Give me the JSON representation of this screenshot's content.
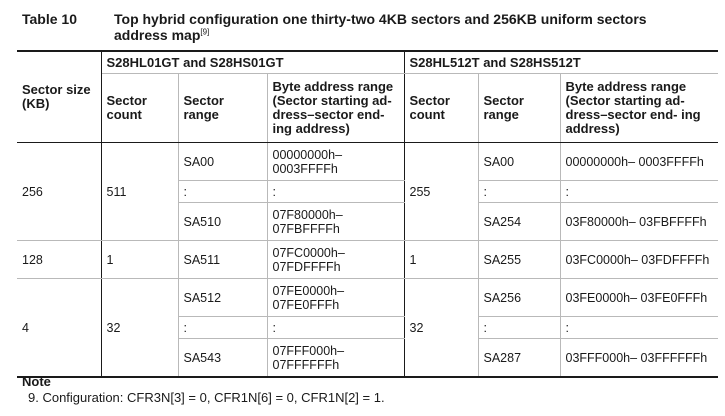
{
  "caption": {
    "label": "Table 10",
    "title_line1": "Top hybrid configuration one thirty-two 4KB sectors and 256KB uniform sectors",
    "title_line2": "address map",
    "ref": "[9]"
  },
  "headers": {
    "sector_size": "Sector size (KB)",
    "group1": "S28HL01GT and S28HS01GT",
    "group2": "S28HL512T and S28HS512T",
    "g1_count": "Sector count",
    "g1_range": "Sector range",
    "g1_addr": "Byte address range (Sector starting ad- dress–sector end- ing address)",
    "g2_count": "Sector count",
    "g2_range": "Sector range",
    "g2_addr": "Byte address range (Sector starting ad- dress–sector end- ing address)"
  },
  "blocks": [
    {
      "size": "256",
      "g1_count": "511",
      "g2_count": "255",
      "rows": [
        {
          "g1_range": "SA00",
          "g1_addr": "00000000h– 0003FFFFh",
          "g2_range": "SA00",
          "g2_addr": "00000000h– 0003FFFFh"
        },
        {
          "g1_range": ":",
          "g1_addr": ":",
          "g2_range": ":",
          "g2_addr": ":"
        },
        {
          "g1_range": "SA510",
          "g1_addr": "07F80000h– 07FBFFFFh",
          "g2_range": "SA254",
          "g2_addr": "03F80000h– 03FBFFFFh"
        }
      ]
    },
    {
      "size": "128",
      "g1_count": "1",
      "g2_count": "1",
      "rows": [
        {
          "g1_range": "SA511",
          "g1_addr": "07FC0000h– 07FDFFFFh",
          "g2_range": "SA255",
          "g2_addr": "03FC0000h– 03FDFFFFh"
        }
      ]
    },
    {
      "size": "4",
      "g1_count": "32",
      "g2_count": "32",
      "rows": [
        {
          "g1_range": "SA512",
          "g1_addr": "07FE0000h– 07FE0FFFh",
          "g2_range": "SA256",
          "g2_addr": "03FE0000h– 03FE0FFFh"
        },
        {
          "g1_range": ":",
          "g1_addr": ":",
          "g2_range": ":",
          "g2_addr": ":"
        },
        {
          "g1_range": "SA543",
          "g1_addr": "07FFF000h– 07FFFFFFh",
          "g2_range": "SA287",
          "g2_addr": "03FFF000h– 03FFFFFFh"
        }
      ]
    }
  ],
  "note": {
    "title": "Note",
    "item": "9. Configuration: CFR3N[3] = 0, CFR1N[6] = 0, CFR1N[2] = 1."
  }
}
